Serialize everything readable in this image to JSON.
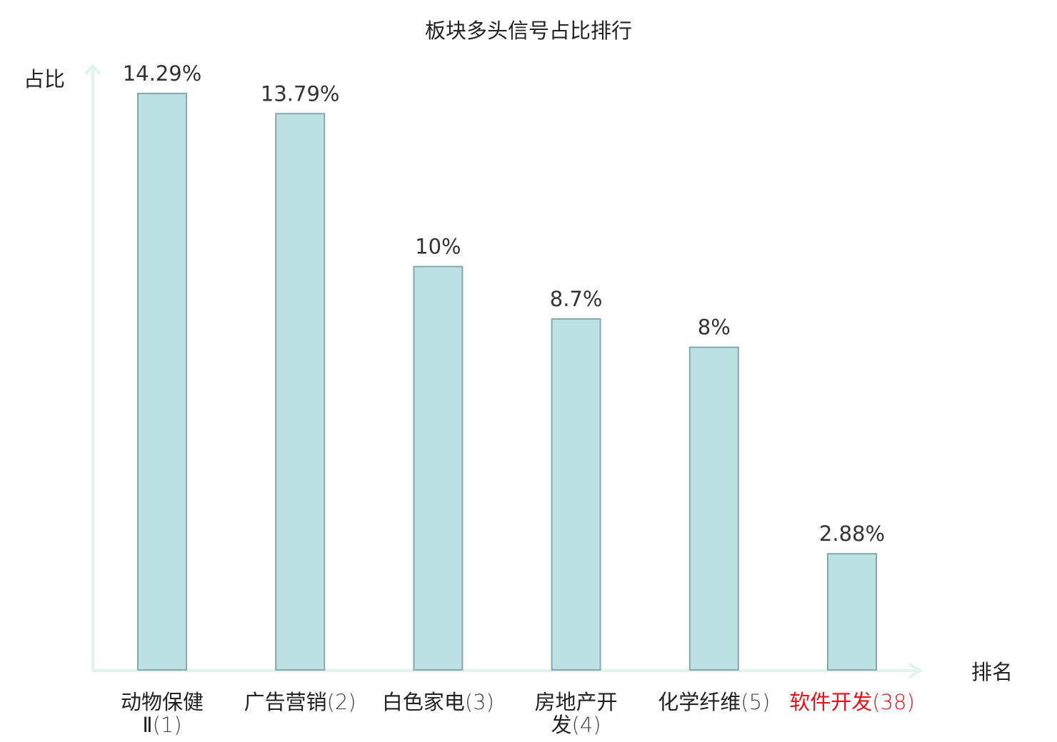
{
  "chart_data": {
    "type": "bar",
    "title": "板块多头信号占比排行",
    "ylabel": "占比",
    "xlabel": "排名",
    "ylim": [
      0,
      15.72
    ],
    "grid": false,
    "categories": [
      "动物保健Ⅱ(1)",
      "广告营销(2)",
      "白色家电(3)",
      "房地产开发(4)",
      "化学纤维(5)",
      "软件开发(38)"
    ],
    "labels": [
      {
        "name_lines": [
          "动物保健"
        ],
        "rank_line_name": "Ⅱ",
        "rank": "(1)",
        "highlight": false
      },
      {
        "name_lines": [
          "广告营销"
        ],
        "rank_line_name": "",
        "rank": "(2)",
        "highlight": false
      },
      {
        "name_lines": [
          "白色家电"
        ],
        "rank_line_name": "",
        "rank": "(3)",
        "highlight": false
      },
      {
        "name_lines": [
          "房地产开"
        ],
        "rank_line_name": "发",
        "rank": "(4)",
        "highlight": false
      },
      {
        "name_lines": [
          "化学纤维"
        ],
        "rank_line_name": "",
        "rank": "(5)",
        "highlight": false
      },
      {
        "name_lines": [
          "软件开发"
        ],
        "rank_line_name": "",
        "rank": "(38)",
        "highlight": true
      }
    ],
    "values": [
      14.29,
      13.79,
      10,
      8.7,
      8,
      2.88
    ],
    "value_labels": [
      "14.29%",
      "13.79%",
      "10%",
      "8.7%",
      "8%",
      "2.88%"
    ],
    "colors": {
      "bar_fill": "#bde0e2",
      "bar_stroke": "#86a8aa",
      "axis": "#e0f3ef",
      "highlight": "#e8101a",
      "text": "#222222"
    }
  }
}
